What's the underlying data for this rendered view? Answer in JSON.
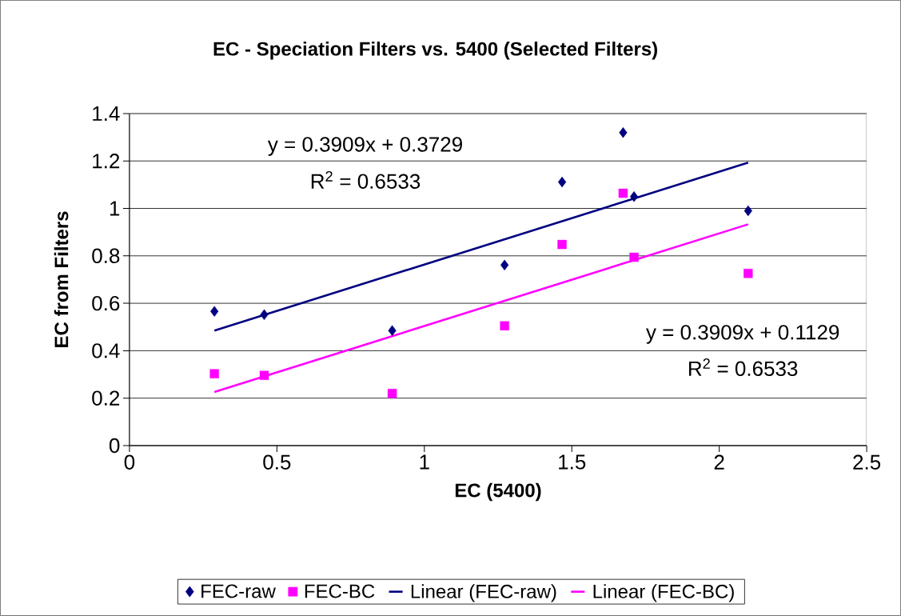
{
  "chart_data": {
    "type": "scatter",
    "title": "EC - Speciation Filters vs. 5400 (Selected Filters)",
    "xlabel": "EC (5400)",
    "ylabel": "EC from Filters",
    "xlim": [
      0,
      2.5
    ],
    "xticks": [
      0,
      0.5,
      1,
      1.5,
      2,
      2.5
    ],
    "ylim": [
      0,
      1.4
    ],
    "yticks": [
      0,
      0.2,
      0.4,
      0.6,
      0.8,
      1,
      1.2,
      1.4
    ],
    "grid": "y",
    "legend": "bottom",
    "series": [
      {
        "name": "FEC-raw",
        "marker": "diamond",
        "color": "#000080",
        "x": [
          0.288,
          0.457,
          0.891,
          1.272,
          1.467,
          1.674,
          1.711,
          2.098
        ],
        "values": [
          0.566,
          0.552,
          0.485,
          0.761,
          1.111,
          1.32,
          1.05,
          0.99
        ]
      },
      {
        "name": "FEC-BC",
        "marker": "square",
        "color": "#ff00ff",
        "x": [
          0.288,
          0.457,
          0.891,
          1.272,
          1.467,
          1.674,
          1.711,
          2.098
        ],
        "values": [
          0.303,
          0.296,
          0.22,
          0.505,
          0.848,
          1.064,
          0.794,
          0.726
        ]
      },
      {
        "name": "Linear (FEC-raw)",
        "type": "line",
        "marker": "none",
        "color": "#000080",
        "x": [
          0.288,
          2.098
        ],
        "values": [
          0.485,
          1.193
        ]
      },
      {
        "name": "Linear (FEC-BC)",
        "type": "line",
        "marker": "none",
        "color": "#ff00ff",
        "x": [
          0.288,
          2.098
        ],
        "values": [
          0.226,
          0.933
        ]
      }
    ],
    "annotations": [
      "y = 0.3909x + 0.3729",
      "R$^{2}$ = 0.6533",
      "y = 0.3909x + 0.1129",
      "R$^{2}$ = 0.6533"
    ]
  }
}
